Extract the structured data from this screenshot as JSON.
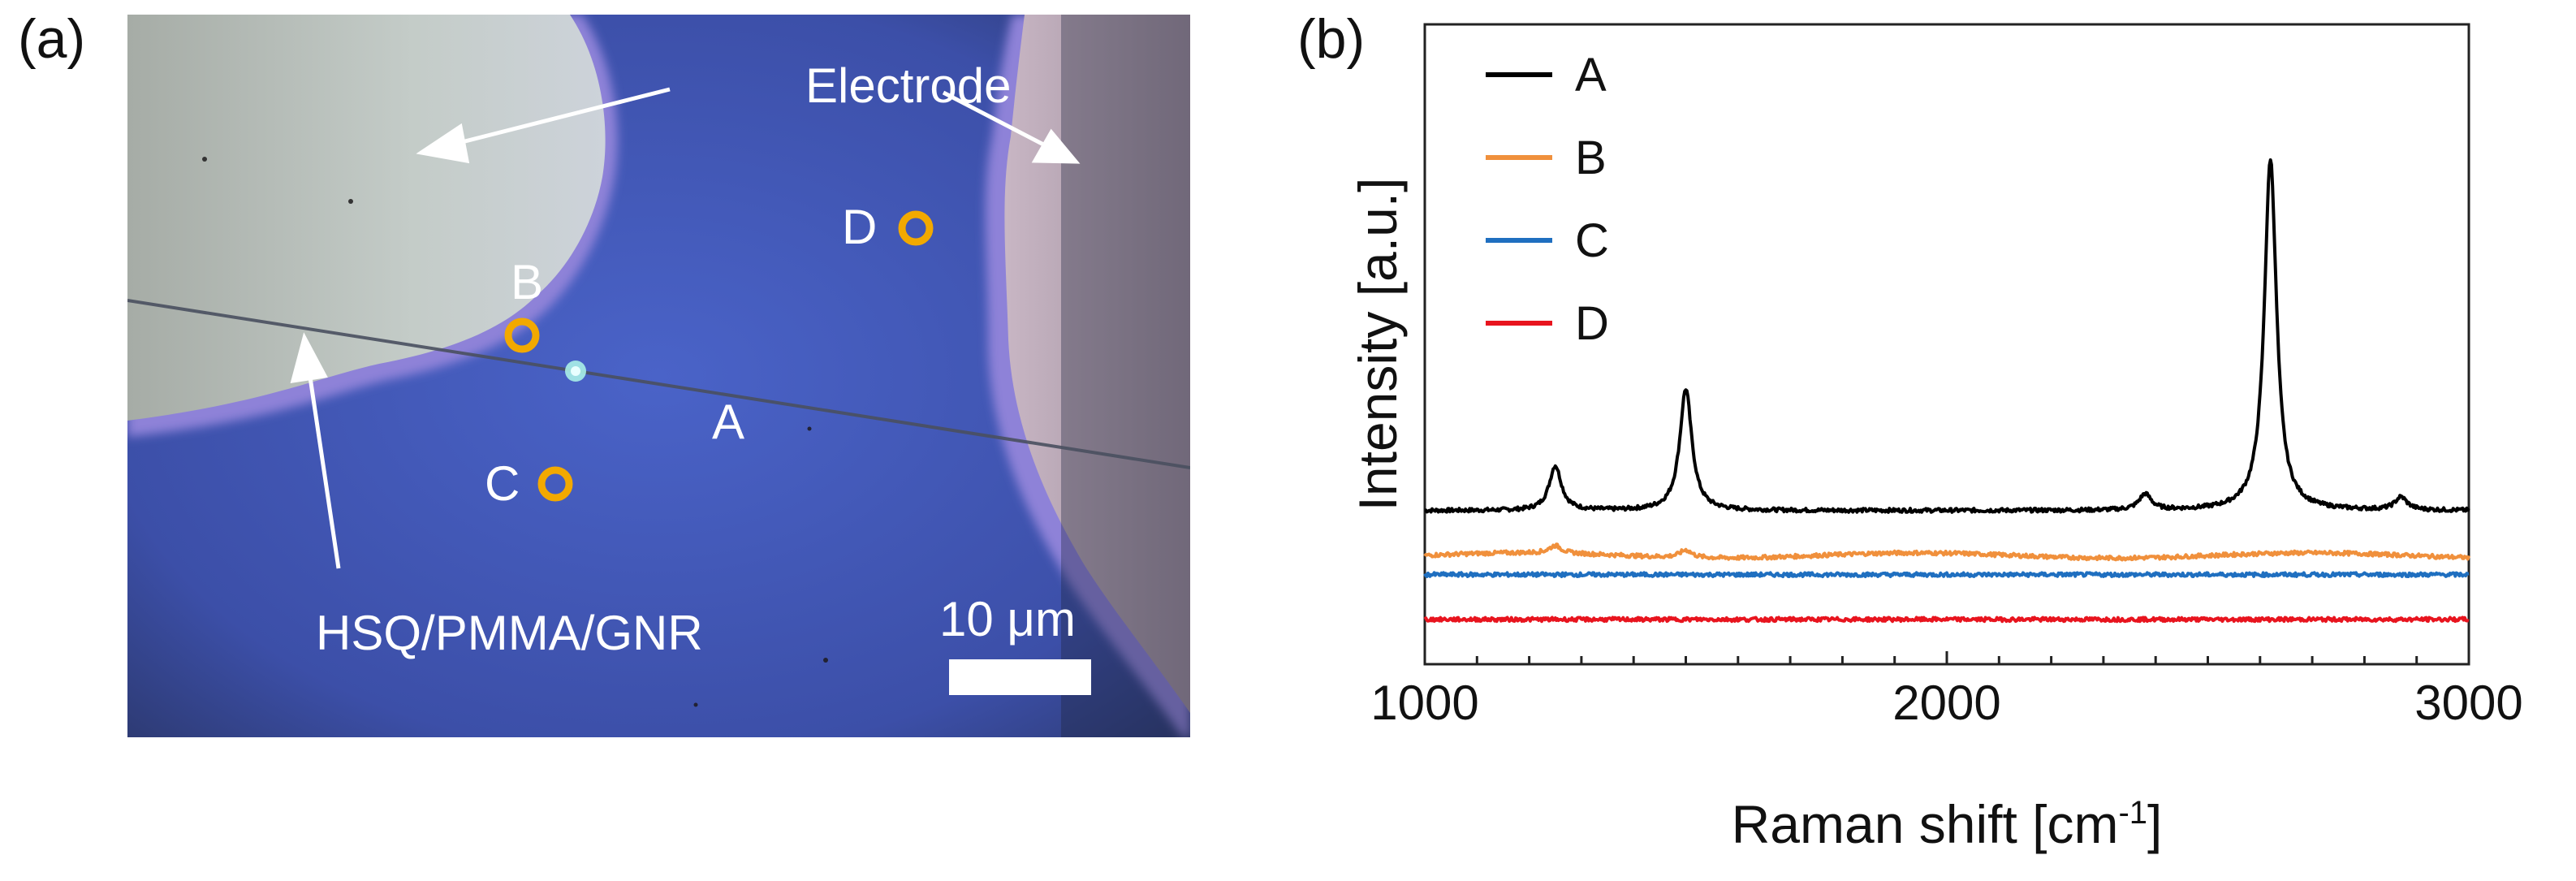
{
  "panels": {
    "a_label": "(a)",
    "b_label": "(b)"
  },
  "micrograph": {
    "electrode_label": "Electrode",
    "sample_label": "HSQ/PMMA/GNR",
    "scale_bar_label": "10 μm",
    "point_labels": {
      "A": "A",
      "B": "B",
      "C": "C",
      "D": "D"
    }
  },
  "colors": {
    "A": "#000000",
    "B": "#f0903c",
    "C": "#1f6fc0",
    "D": "#e8141e",
    "marker": "#f2a900"
  },
  "chart_data": {
    "type": "line",
    "title": "",
    "xlabel": "Raman shift [cm-1]",
    "ylabel": "Intensity [a.u.]",
    "xlim": [
      1000,
      3000
    ],
    "ylim": [
      0,
      1
    ],
    "xticks": [
      1000,
      2000,
      3000
    ],
    "legend_position": "top-left",
    "series": [
      {
        "name": "A",
        "baseline": 0.24,
        "peaks": [
          [
            1250,
            0.07
          ],
          [
            1500,
            0.19
          ],
          [
            2380,
            0.025
          ],
          [
            2620,
            0.55
          ],
          [
            2870,
            0.02
          ]
        ]
      },
      {
        "name": "B",
        "baseline": 0.17,
        "peaks": [
          [
            1250,
            0.012
          ],
          [
            1500,
            0.012
          ]
        ]
      },
      {
        "name": "C",
        "baseline": 0.14,
        "peaks": []
      },
      {
        "name": "D",
        "baseline": 0.07,
        "peaks": []
      }
    ]
  }
}
